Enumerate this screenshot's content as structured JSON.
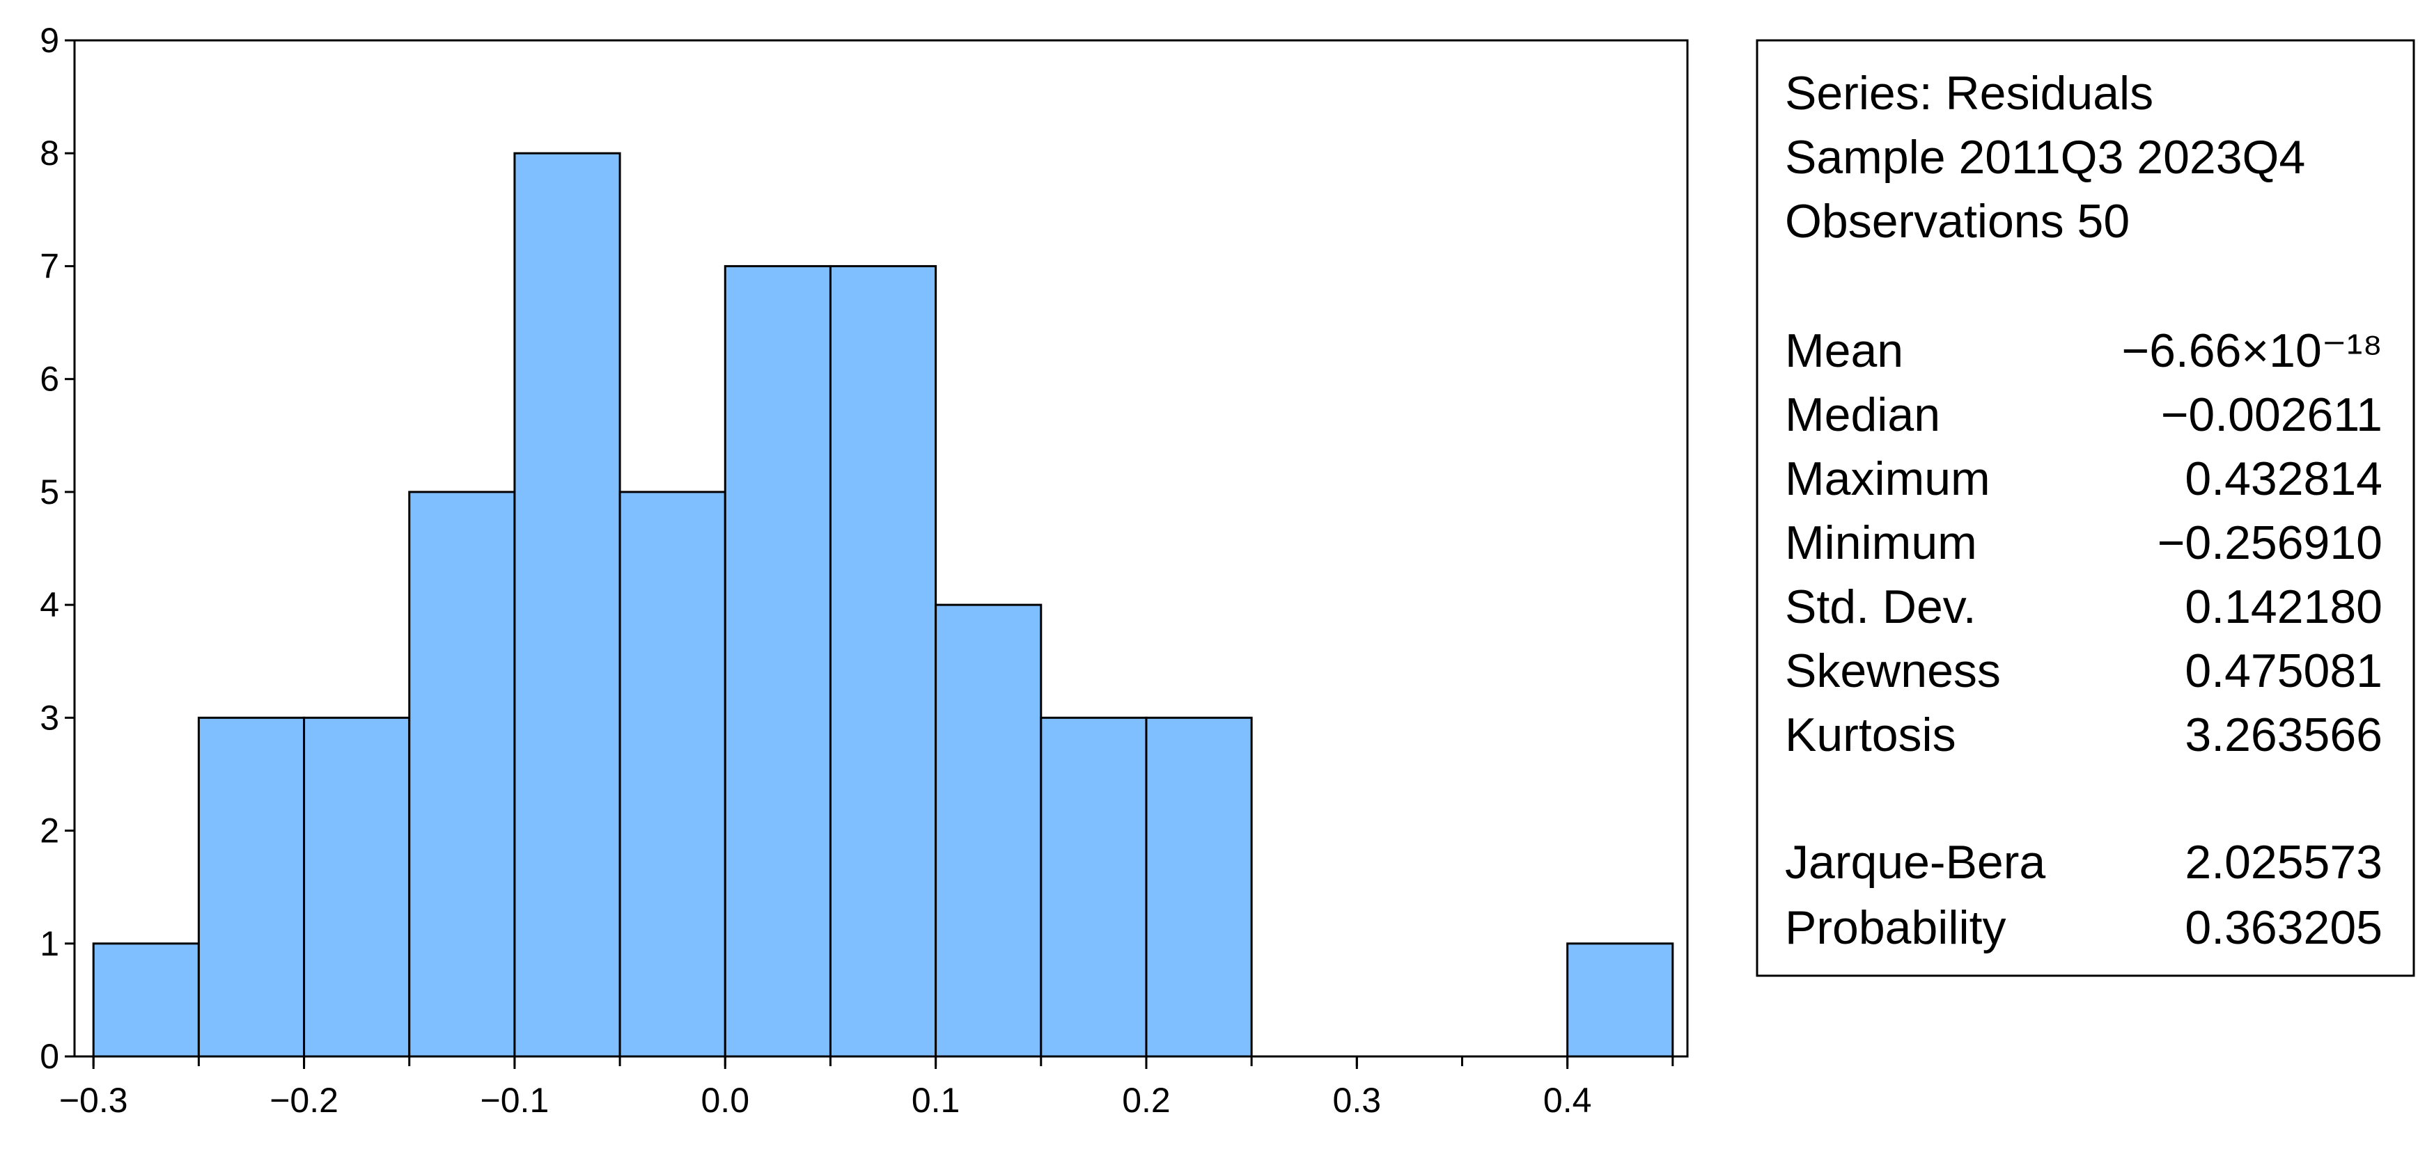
{
  "chart_data": {
    "type": "histogram",
    "bins": [
      -0.3,
      -0.25,
      -0.2,
      -0.15,
      -0.1,
      -0.05,
      0.0,
      0.05,
      0.1,
      0.15,
      0.2,
      0.25,
      0.3,
      0.35,
      0.4,
      0.45
    ],
    "values": [
      1,
      3,
      3,
      5,
      8,
      5,
      7,
      7,
      4,
      3,
      3,
      0,
      0,
      0,
      1
    ],
    "color": "#80bfff",
    "xlim": [
      -0.309,
      0.457
    ],
    "ylim": [
      0,
      9
    ],
    "xticks": [
      {
        "value": -0.3,
        "label": "−0.3"
      },
      {
        "value": -0.2,
        "label": "−0.2"
      },
      {
        "value": -0.1,
        "label": "−0.1"
      },
      {
        "value": 0.0,
        "label": "0.0"
      },
      0.1,
      0.2,
      0.3,
      0.4
    ],
    "yticks": [
      0,
      1,
      2,
      3,
      4,
      5,
      6,
      7,
      8,
      9
    ],
    "stats_box": {
      "header": [
        "Series: Residuals",
        "Sample 2011Q3 2023Q4",
        "Observations 50"
      ],
      "rows": [
        [
          "Mean",
          "−6.66×10⁻¹⁸"
        ],
        [
          "Median",
          "−0.002611"
        ],
        [
          "Maximum",
          "0.432814"
        ],
        [
          "Minimum",
          "−0.256910"
        ],
        [
          "Std. Dev.",
          "0.142180"
        ],
        [
          "Skewness",
          "0.475081"
        ],
        [
          "Kurtosis",
          "3.263566"
        ]
      ],
      "tests": [
        [
          "Jarque-Bera",
          "2.025573"
        ],
        [
          "Probability",
          "0.363205"
        ]
      ]
    }
  }
}
